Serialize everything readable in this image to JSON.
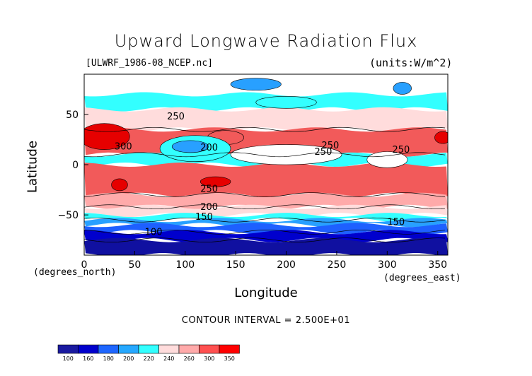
{
  "chart_data": {
    "type": "heatmap",
    "title": "Upward Longwave Radiation Flux",
    "file_label": "[ULWRF_1986-08_NCEP.nc]",
    "units_label": "(units:W/m^2)",
    "xlabel": "Longitude",
    "ylabel": "Latitude",
    "x_unit_note": "(degrees_east)",
    "y_unit_note": "(degrees_north)",
    "contour_interval_text": "CONTOUR INTERVAL = 2.500E+01",
    "xlim": [
      0,
      360
    ],
    "ylim": [
      -90,
      90
    ],
    "x_ticks": [
      "0",
      "50",
      "100",
      "150",
      "200",
      "250",
      "300",
      "350"
    ],
    "y_ticks": [
      "50",
      "0",
      "−50"
    ],
    "contour_labels": [
      "250",
      "300",
      "200",
      "250",
      "250",
      "250",
      "250",
      "200",
      "150",
      "100",
      "150"
    ],
    "colorbar": {
      "levels": [
        "100",
        "160",
        "180",
        "200",
        "220",
        "240",
        "260",
        "300",
        "350"
      ],
      "colors": [
        "#1a1aa0",
        "#0000cd",
        "#1e66ff",
        "#26a8ff",
        "#33ffff",
        "#ffdcdc",
        "#ffaaaa",
        "#ff5050",
        "#ff0000"
      ]
    },
    "colors": {
      "l1": "#1010a0",
      "l2": "#0000cd",
      "l3": "#1e60ff",
      "l4": "#28a0ff",
      "l5": "#33ffff",
      "l6": "#ffffff",
      "l7": "#ffdcdc",
      "l8": "#ffaaaa",
      "l9": "#f25a5a",
      "l10": "#e60000"
    },
    "zonal_bands": [
      {
        "lat": [
          70,
          90
        ],
        "level": "l6"
      },
      {
        "lat": [
          55,
          70
        ],
        "level": "l5"
      },
      {
        "lat": [
          35,
          55
        ],
        "level": "l7"
      },
      {
        "lat": [
          10,
          35
        ],
        "level": "l9"
      },
      {
        "lat": [
          0,
          10
        ],
        "level": "l5"
      },
      {
        "lat": [
          -30,
          0
        ],
        "level": "l9"
      },
      {
        "lat": [
          -42,
          -30
        ],
        "level": "l8"
      },
      {
        "lat": [
          -50,
          -42
        ],
        "level": "l7"
      },
      {
        "lat": [
          -55,
          -50
        ],
        "level": "l5"
      },
      {
        "lat": [
          -60,
          -55
        ],
        "level": "l4"
      },
      {
        "lat": [
          -67,
          -60
        ],
        "level": "l3"
      },
      {
        "lat": [
          -75,
          -67
        ],
        "level": "l2"
      },
      {
        "lat": [
          -90,
          -75
        ],
        "level": "l1"
      }
    ],
    "features": [
      {
        "lon": 20,
        "lat": 28,
        "rlon": 25,
        "rlat": 13,
        "level": "l10"
      },
      {
        "lon": 140,
        "lat": 27,
        "rlon": 18,
        "rlat": 7,
        "level": "l9"
      },
      {
        "lon": 110,
        "lat": 16,
        "rlon": 35,
        "rlat": 13,
        "level": "l5"
      },
      {
        "lon": 105,
        "lat": 18,
        "rlon": 18,
        "rlat": 6,
        "level": "l4"
      },
      {
        "lon": 200,
        "lat": 10,
        "rlon": 55,
        "rlat": 10,
        "level": "l6"
      },
      {
        "lon": 300,
        "lat": 5,
        "rlon": 20,
        "rlat": 8,
        "level": "l6"
      },
      {
        "lon": 130,
        "lat": -17,
        "rlon": 15,
        "rlat": 5,
        "level": "l10"
      },
      {
        "lon": 35,
        "lat": -20,
        "rlon": 8,
        "rlat": 6,
        "level": "l10"
      },
      {
        "lon": 355,
        "lat": 27,
        "rlon": 8,
        "rlat": 6,
        "level": "l10"
      },
      {
        "lon": 170,
        "lat": 80,
        "rlon": 25,
        "rlat": 6,
        "level": "l4"
      },
      {
        "lon": 315,
        "lat": 76,
        "rlon": 9,
        "rlat": 6,
        "level": "l4"
      },
      {
        "lon": 200,
        "lat": 62,
        "rlon": 30,
        "rlat": 6,
        "level": "l5"
      }
    ]
  }
}
